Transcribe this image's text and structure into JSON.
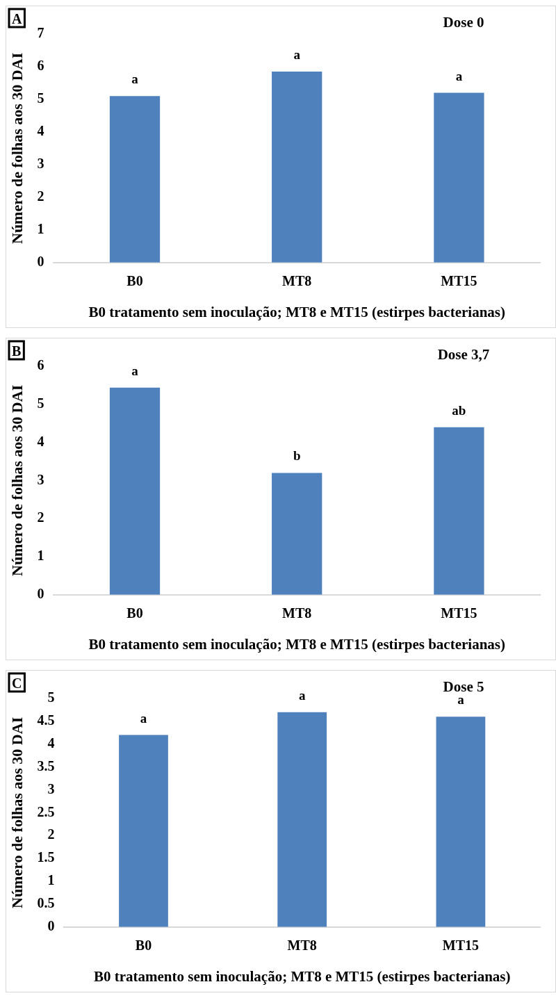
{
  "chart_data": [
    {
      "type": "bar",
      "title": "Dose 0",
      "xlabel": "B0 tratamento sem inoculação; MT8 e MT15 (estirpes bacterianas)",
      "ylabel": "Número de folhas aos 30 DAI",
      "categories": [
        "B0",
        "MT8",
        "MT15"
      ],
      "values": [
        5.1,
        5.85,
        5.2
      ],
      "color": "#4f81bd",
      "ylim": [
        0,
        7
      ],
      "yticks": [
        0,
        1,
        2,
        3,
        4,
        5,
        6,
        7
      ],
      "grid": false,
      "annotations": [
        "A",
        {
          "text": "a",
          "x": "B0",
          "y": 5.1
        },
        {
          "text": "a",
          "x": "MT8",
          "y": 5.85
        },
        {
          "text": "a",
          "x": "MT15",
          "y": 5.2
        }
      ]
    },
    {
      "type": "bar",
      "title": "Dose 3,7",
      "xlabel": "B0 tratamento sem inoculação; MT8 e MT15 (estirpes bacterianas)",
      "ylabel": "Número de folhas aos 30 DAI",
      "categories": [
        "B0",
        "MT8",
        "MT15"
      ],
      "values": [
        5.44,
        3.2,
        4.4
      ],
      "color": "#4f81bd",
      "ylim": [
        0,
        6
      ],
      "yticks": [
        0,
        1,
        2,
        3,
        4,
        5,
        6
      ],
      "grid": false,
      "annotations": [
        "B",
        {
          "text": "a",
          "x": "B0",
          "y": 5.44
        },
        {
          "text": "b",
          "x": "MT8",
          "y": 3.2
        },
        {
          "text": "ab",
          "x": "MT15",
          "y": 4.4
        }
      ]
    },
    {
      "type": "bar",
      "title": "Dose 5",
      "xlabel": "B0 tratamento sem inoculação; MT8 e MT15 (estirpes bacterianas)",
      "ylabel": "Número de folhas aos 30 DAI",
      "categories": [
        "B0",
        "MT8",
        "MT15"
      ],
      "values": [
        4.2,
        4.7,
        4.6
      ],
      "color": "#4f81bd",
      "ylim": [
        0,
        5
      ],
      "yticks": [
        0,
        0.5,
        1,
        1.5,
        2,
        2.5,
        3,
        3.5,
        4,
        4.5,
        5
      ],
      "grid": false,
      "annotations": [
        "C",
        {
          "text": "a",
          "x": "B0",
          "y": 4.2
        },
        {
          "text": "a",
          "x": "MT8",
          "y": 4.7
        },
        {
          "text": "a",
          "x": "MT15",
          "y": 4.6
        }
      ]
    }
  ]
}
